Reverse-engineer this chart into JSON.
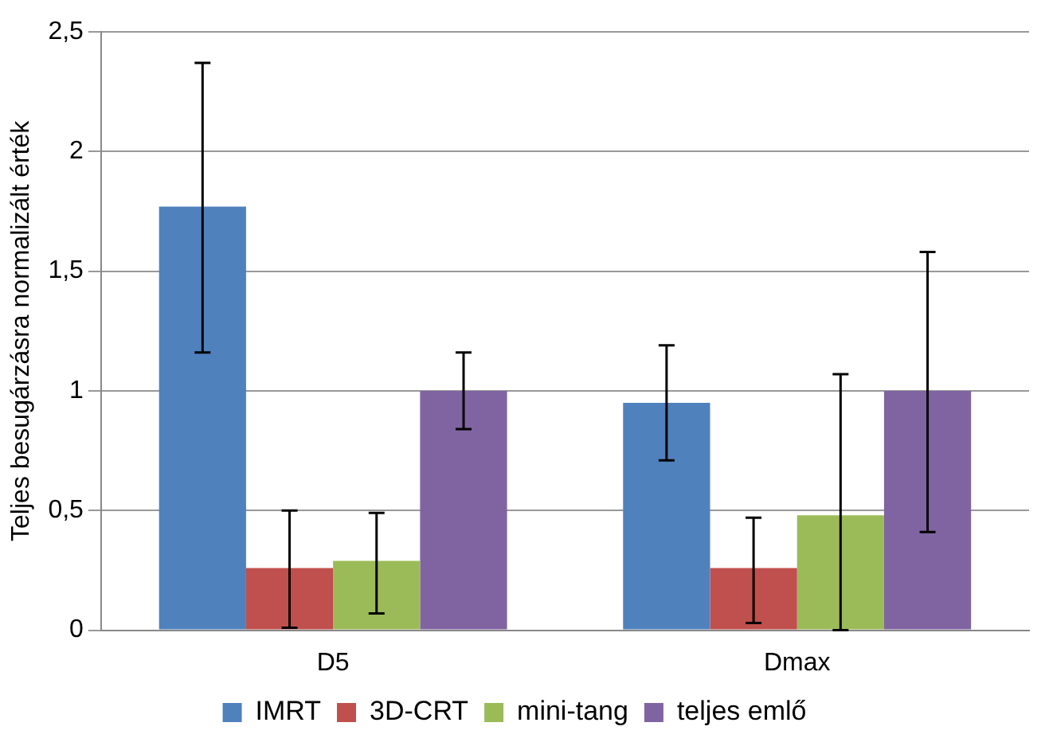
{
  "chart_data": {
    "type": "bar",
    "ylabel": "Teljes besugárzásra normalizált érték",
    "categories": [
      "D5",
      "Dmax"
    ],
    "series": [
      {
        "name": "IMRT",
        "color": "#4f81bd",
        "values": [
          1.77,
          0.95
        ],
        "errors": [
          [
            1.16,
            2.37
          ],
          [
            0.71,
            1.19
          ]
        ]
      },
      {
        "name": "3D-CRT",
        "color": "#c0504d",
        "values": [
          0.26,
          0.26
        ],
        "errors": [
          [
            0.01,
            0.5
          ],
          [
            0.03,
            0.47
          ]
        ]
      },
      {
        "name": "mini-tang",
        "color": "#9bbb59",
        "values": [
          0.29,
          0.48
        ],
        "errors": [
          [
            0.07,
            0.49
          ],
          [
            0,
            1.07
          ]
        ]
      },
      {
        "name": "teljes emlő",
        "color": "#8064a2",
        "values": [
          1.0,
          1.0
        ],
        "errors": [
          [
            0.84,
            1.16
          ],
          [
            0.41,
            1.58
          ]
        ]
      }
    ],
    "ylim": [
      0,
      2.5
    ],
    "yticks": [
      0,
      {
        "value": 0.5,
        "label": "0,5"
      },
      1,
      {
        "value": 1.5,
        "label": "1,5"
      },
      2,
      {
        "value": 2.5,
        "label": "2,5"
      }
    ],
    "grid": "y",
    "legend": "bottom"
  }
}
